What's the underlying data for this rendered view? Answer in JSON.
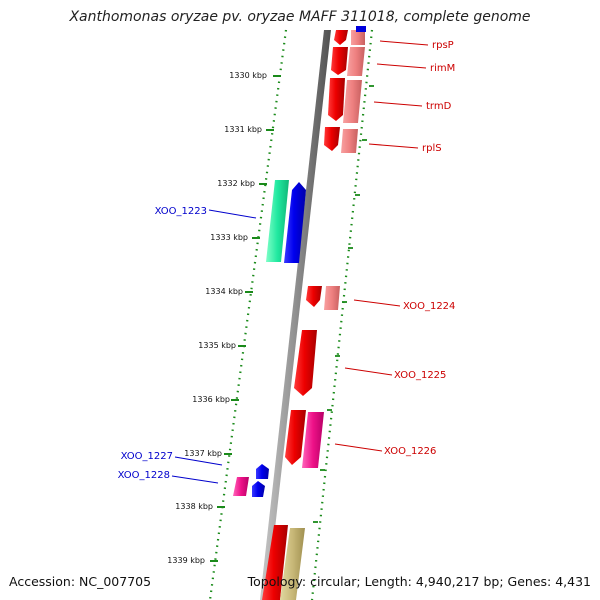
{
  "title": "Xanthomonas oryzae pv. oryzae MAFF 311018, complete genome",
  "footer": {
    "accession": "Accession: NC_007705",
    "summary": "Topology: circular; Length: 4,940,217 bp; Genes: 4,431"
  },
  "ticks": [
    "1330 kbp",
    "1331 kbp",
    "1332 kbp",
    "1333 kbp",
    "1334 kbp",
    "1335 kbp",
    "1336 kbp",
    "1337 kbp",
    "1338 kbp",
    "1339 kbp"
  ],
  "genes": [
    {
      "name": "rpsP",
      "color": "#cc0000"
    },
    {
      "name": "rimM",
      "color": "#cc0000"
    },
    {
      "name": "trmD",
      "color": "#cc0000"
    },
    {
      "name": "rplS",
      "color": "#cc0000"
    },
    {
      "name": "XOO_1223",
      "color": "#0000cc"
    },
    {
      "name": "XOO_1224",
      "color": "#cc0000"
    },
    {
      "name": "XOO_1225",
      "color": "#cc0000"
    },
    {
      "name": "XOO_1226",
      "color": "#cc0000"
    },
    {
      "name": "XOO_1227",
      "color": "#0000cc"
    },
    {
      "name": "XOO_1228",
      "color": "#0000cc"
    }
  ]
}
